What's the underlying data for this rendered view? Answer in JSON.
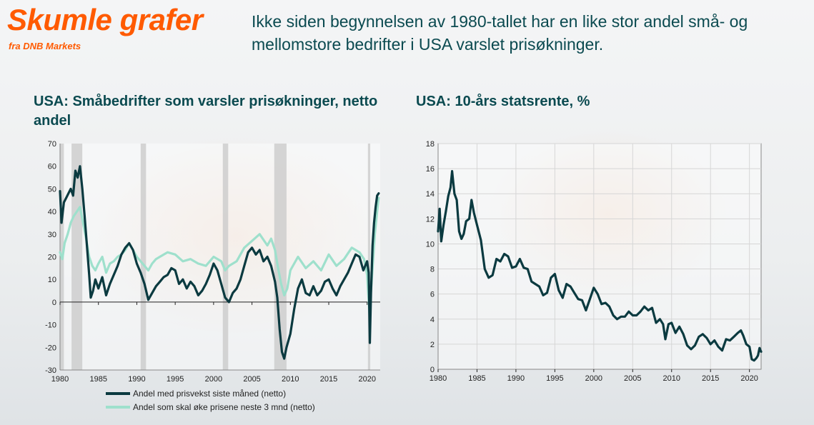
{
  "header": {
    "brand_title": "Skumle grafer",
    "brand_subtitle": "fra DNB Markets",
    "headline": "Ikke siden begynnelsen av 1980-tallet har en like stor andel små- og mellomstore bedrifter i USA varslet prisøkninger."
  },
  "colors": {
    "brand": "#ff5a00",
    "title": "#0b4a50",
    "series_dark": "#0b3a40",
    "series_light": "#9ee0cc",
    "recession": "#c8c8c8"
  },
  "chart_data": [
    {
      "type": "line",
      "title": "USA: Småbedrifter som varsler prisøkninger, netto andel",
      "xlabel": "",
      "ylabel": "",
      "xlim": [
        1980,
        2021.7
      ],
      "ylim": [
        -30,
        70
      ],
      "y_ticks": [
        70,
        60,
        50,
        40,
        30,
        20,
        10,
        0,
        -10,
        -20,
        -30
      ],
      "x_ticks": [
        1980,
        1985,
        1990,
        1995,
        2000,
        2005,
        2010,
        2015,
        2020
      ],
      "grid": false,
      "legend_position": "bottom",
      "recessions": [
        [
          1980.0,
          1980.5
        ],
        [
          1981.5,
          1982.9
        ],
        [
          1990.5,
          1991.2
        ],
        [
          2001.2,
          2001.9
        ],
        [
          2007.9,
          2009.5
        ],
        [
          2020.1,
          2020.4
        ]
      ],
      "series": [
        {
          "name": "Andel med prisvekst siste måned (netto)",
          "x": [
            1980.0,
            1980.2,
            1980.5,
            1980.8,
            1981.1,
            1981.4,
            1981.7,
            1982.0,
            1982.3,
            1982.6,
            1982.9,
            1983.2,
            1983.5,
            1983.8,
            1984.0,
            1984.3,
            1984.6,
            1985.0,
            1985.5,
            1986.0,
            1986.5,
            1987.0,
            1987.5,
            1988.0,
            1988.5,
            1989.0,
            1989.5,
            1990.0,
            1990.5,
            1991.0,
            1991.5,
            1992.0,
            1992.5,
            1993.0,
            1993.5,
            1994.0,
            1994.5,
            1995.0,
            1995.5,
            1996.0,
            1996.5,
            1997.0,
            1997.5,
            1998.0,
            1998.5,
            1999.0,
            1999.5,
            2000.0,
            2000.5,
            2001.0,
            2001.5,
            2002.0,
            2002.5,
            2003.0,
            2003.5,
            2004.0,
            2004.5,
            2005.0,
            2005.5,
            2006.0,
            2006.5,
            2007.0,
            2007.5,
            2008.0,
            2008.3,
            2008.6,
            2008.9,
            2009.2,
            2009.5,
            2010.0,
            2010.5,
            2011.0,
            2011.5,
            2012.0,
            2012.5,
            2013.0,
            2013.5,
            2014.0,
            2014.5,
            2015.0,
            2015.5,
            2016.0,
            2016.5,
            2017.0,
            2017.5,
            2018.0,
            2018.5,
            2019.0,
            2019.5,
            2020.0,
            2020.2,
            2020.35,
            2020.5,
            2020.7,
            2020.9,
            2021.1,
            2021.3,
            2021.5
          ],
          "values": [
            49,
            35,
            44,
            46,
            48,
            50,
            47,
            58,
            55,
            60,
            50,
            38,
            25,
            12,
            2,
            5,
            10,
            6,
            11,
            3,
            8,
            12,
            16,
            21,
            24,
            26,
            23,
            17,
            13,
            8,
            1,
            4,
            7,
            9,
            11,
            12,
            15,
            14,
            8,
            10,
            6,
            9,
            7,
            3,
            5,
            8,
            12,
            17,
            14,
            8,
            2,
            0,
            4,
            6,
            10,
            16,
            22,
            24,
            21,
            23,
            18,
            20,
            16,
            9,
            2,
            -12,
            -22,
            -25,
            -20,
            -14,
            -3,
            6,
            10,
            4,
            3,
            7,
            3,
            5,
            9,
            10,
            6,
            3,
            7,
            10,
            13,
            17,
            21,
            20,
            14,
            18,
            13,
            -18,
            4,
            25,
            35,
            42,
            47,
            48
          ]
        },
        {
          "name": "Andel som skal øke prisene neste 3 mnd (netto)",
          "x": [
            1980.0,
            1980.3,
            1980.6,
            1981.0,
            1981.4,
            1981.8,
            1982.2,
            1982.6,
            1983.0,
            1983.4,
            1983.8,
            1984.2,
            1984.6,
            1985.0,
            1985.5,
            1986.0,
            1986.5,
            1987.0,
            1987.5,
            1988.0,
            1988.5,
            1989.0,
            1989.5,
            1990.0,
            1990.5,
            1991.0,
            1991.5,
            1992.0,
            1992.5,
            1993.0,
            1994.0,
            1995.0,
            1996.0,
            1997.0,
            1998.0,
            1999.0,
            2000.0,
            2001.0,
            2001.5,
            2002.0,
            2003.0,
            2004.0,
            2005.0,
            2006.0,
            2007.0,
            2007.5,
            2008.0,
            2008.4,
            2008.8,
            2009.2,
            2009.6,
            2010.0,
            2011.0,
            2012.0,
            2013.0,
            2014.0,
            2015.0,
            2016.0,
            2017.0,
            2018.0,
            2019.0,
            2019.6,
            2020.0,
            2020.3,
            2020.6,
            2021.0,
            2021.3,
            2021.5
          ],
          "values": [
            22,
            19,
            26,
            30,
            35,
            38,
            40,
            42,
            35,
            28,
            20,
            16,
            14,
            17,
            20,
            13,
            17,
            18,
            20,
            21,
            23,
            26,
            23,
            20,
            18,
            16,
            14,
            17,
            19,
            20,
            22,
            21,
            18,
            19,
            17,
            16,
            20,
            18,
            14,
            16,
            18,
            24,
            27,
            30,
            25,
            28,
            23,
            15,
            8,
            3,
            6,
            14,
            20,
            15,
            18,
            14,
            21,
            16,
            19,
            24,
            22,
            19,
            12,
            -5,
            10,
            30,
            40,
            46
          ]
        }
      ]
    },
    {
      "type": "line",
      "title": "USA: 10-års statsrente, %",
      "xlabel": "",
      "ylabel": "",
      "xlim": [
        1980,
        2021.5
      ],
      "ylim": [
        0,
        18
      ],
      "y_ticks": [
        18,
        16,
        14,
        12,
        10,
        8,
        6,
        4,
        2,
        0
      ],
      "x_ticks": [
        1980,
        1985,
        1990,
        1995,
        2000,
        2005,
        2010,
        2015,
        2020
      ],
      "grid": true,
      "series": [
        {
          "name": "",
          "x": [
            1980.0,
            1980.2,
            1980.4,
            1980.7,
            1981.0,
            1981.3,
            1981.6,
            1981.8,
            1982.1,
            1982.4,
            1982.7,
            1983.0,
            1983.3,
            1983.6,
            1984.0,
            1984.3,
            1984.6,
            1985.0,
            1985.5,
            1986.0,
            1986.5,
            1987.0,
            1987.5,
            1988.0,
            1988.5,
            1989.0,
            1989.5,
            1990.0,
            1990.5,
            1991.0,
            1991.5,
            1992.0,
            1992.5,
            1993.0,
            1993.5,
            1994.0,
            1994.5,
            1995.0,
            1995.5,
            1996.0,
            1996.5,
            1997.0,
            1997.5,
            1998.0,
            1998.5,
            1999.0,
            1999.5,
            2000.0,
            2000.5,
            2001.0,
            2001.5,
            2002.0,
            2002.5,
            2003.0,
            2003.5,
            2004.0,
            2004.5,
            2005.0,
            2005.5,
            2006.0,
            2006.5,
            2007.0,
            2007.5,
            2008.0,
            2008.5,
            2008.9,
            2009.2,
            2009.6,
            2010.0,
            2010.5,
            2011.0,
            2011.5,
            2012.0,
            2012.5,
            2013.0,
            2013.5,
            2014.0,
            2014.5,
            2015.0,
            2015.5,
            2016.0,
            2016.5,
            2017.0,
            2017.5,
            2018.0,
            2018.5,
            2018.9,
            2019.2,
            2019.6,
            2020.0,
            2020.3,
            2020.6,
            2020.9,
            2021.1,
            2021.3,
            2021.5
          ],
          "values": [
            11.0,
            12.8,
            10.2,
            11.5,
            12.6,
            13.8,
            14.5,
            15.8,
            14.0,
            13.5,
            11.0,
            10.4,
            10.8,
            11.8,
            12.0,
            13.5,
            12.5,
            11.5,
            10.3,
            8.0,
            7.3,
            7.5,
            8.8,
            8.6,
            9.2,
            9.0,
            8.1,
            8.2,
            8.8,
            8.1,
            8.0,
            7.0,
            6.8,
            6.6,
            5.9,
            6.1,
            7.3,
            7.6,
            6.3,
            5.7,
            6.8,
            6.6,
            6.1,
            5.6,
            5.5,
            4.7,
            5.6,
            6.5,
            6.0,
            5.2,
            5.3,
            5.0,
            4.3,
            4.0,
            4.2,
            4.2,
            4.6,
            4.3,
            4.3,
            4.6,
            5.0,
            4.7,
            4.9,
            3.7,
            4.0,
            3.6,
            2.4,
            3.6,
            3.7,
            2.9,
            3.4,
            2.8,
            1.9,
            1.6,
            1.9,
            2.6,
            2.8,
            2.5,
            2.0,
            2.3,
            1.8,
            1.5,
            2.4,
            2.3,
            2.6,
            2.9,
            3.1,
            2.7,
            2.0,
            1.8,
            0.8,
            0.7,
            0.9,
            1.1,
            1.7,
            1.4
          ]
        }
      ]
    }
  ]
}
